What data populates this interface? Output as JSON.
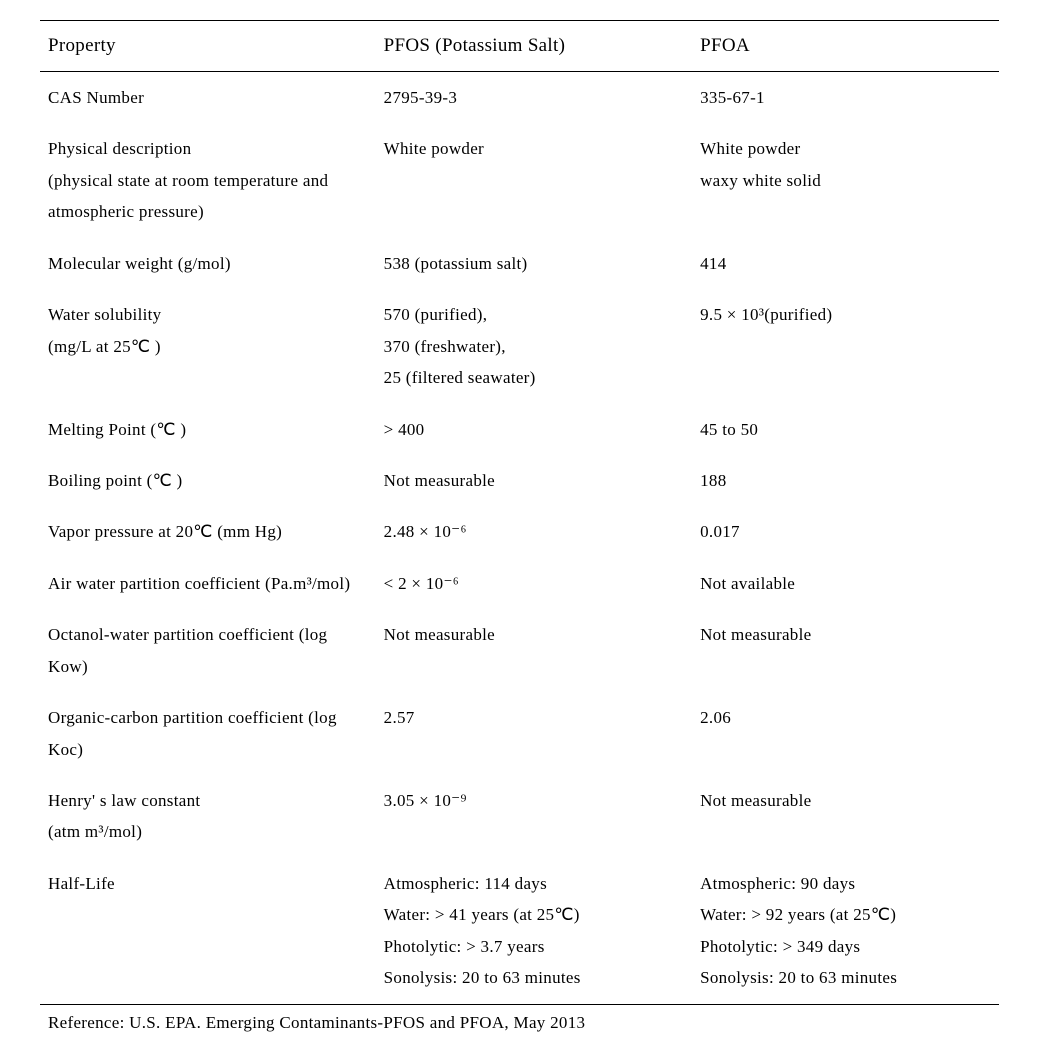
{
  "table": {
    "columns": [
      "Property",
      "PFOS (Potassium Salt)",
      "PFOA"
    ],
    "rows": [
      {
        "property": "CAS Number",
        "pfos": "2795-39-3",
        "pfoa": "335-67-1"
      },
      {
        "property": "Physical description\n(physical state at room temperature and atmospheric pressure)",
        "pfos": "White powder",
        "pfoa": "White powder\nwaxy white solid"
      },
      {
        "property": "Molecular weight (g/mol)",
        "pfos": "538 (potassium salt)",
        "pfoa": "414"
      },
      {
        "property": "Water solubility\n(mg/L at 25℃ )",
        "pfos": "570 (purified),\n370 (freshwater),\n25 (filtered seawater)",
        "pfoa": "9.5 × 10³(purified)"
      },
      {
        "property": "Melting Point (℃ )",
        "pfos": "> 400",
        "pfoa": "45 to 50"
      },
      {
        "property": "Boiling point (℃ )",
        "pfos": "Not measurable",
        "pfoa": "188"
      },
      {
        "property": "Vapor pressure at 20℃ (mm Hg)",
        "pfos": "2.48 × 10⁻⁶",
        "pfoa": "0.017"
      },
      {
        "property": "Air water   partition coefficient (Pa.m³/mol)",
        "pfos": "< 2 × 10⁻⁶",
        "pfoa": "Not available"
      },
      {
        "property": "Octanol-water partition coefficient (log Kow)",
        "pfos": "Not measurable",
        "pfoa": "Not measurable"
      },
      {
        "property": "Organic-carbon partition coefficient (log Koc)",
        "pfos": "2.57",
        "pfoa": "2.06"
      },
      {
        "property": "Henry' s law constant\n(atm m³/mol)",
        "pfos": "3.05 × 10⁻⁹",
        "pfoa": "Not measurable"
      },
      {
        "property": "Half-Life",
        "pfos": "Atmospheric: 114   days\nWater: > 41 years (at 25℃)\nPhotolytic: > 3.7 years\nSonolysis: 20 to 63 minutes",
        "pfoa": "Atmospheric: 90 days\nWater: > 92 years (at 25℃)\nPhotolytic: > 349 days\nSonolysis: 20 to 63 minutes"
      }
    ],
    "reference": "Reference: U.S. EPA. Emerging Contaminants-PFOS and PFOA, May 2013"
  },
  "style": {
    "font_family": "Georgia, serif",
    "body_fontsize": 17,
    "header_fontsize": 19,
    "text_color": "#000000",
    "background_color": "#ffffff",
    "border_color": "#000000",
    "line_height": 1.85,
    "col_widths_pct": [
      35,
      33,
      32
    ]
  }
}
